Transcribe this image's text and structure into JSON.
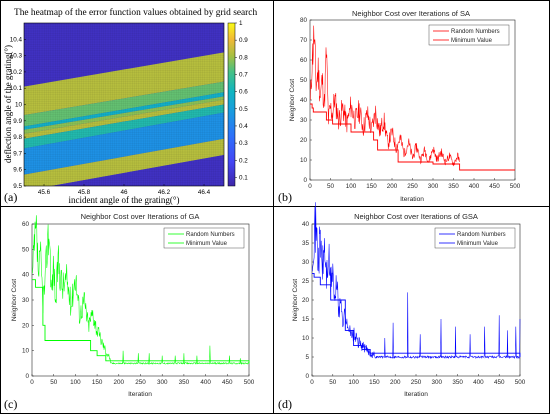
{
  "figure": {
    "panel_labels": [
      "(a)",
      "(b)",
      "(c)",
      "(d)"
    ]
  },
  "chart_data": [
    {
      "type": "heatmap",
      "title": "The heatmap of the error function values obtained by grid search",
      "xlabel": "incident angle of the grating(°)",
      "ylabel": "deflection angle of the grating(°)",
      "xlim": [
        45.5,
        46.5
      ],
      "ylim": [
        9.5,
        10.5
      ],
      "xticks": [
        45.6,
        45.8,
        46,
        46.2,
        46.4
      ],
      "xtick_labels": [
        "45.6",
        "45.8",
        "46",
        "46.2",
        "46.4"
      ],
      "yticks": [
        9.5,
        9.6,
        9.7,
        9.8,
        9.9,
        10,
        10.1,
        10.2,
        10.3,
        10.4
      ],
      "ytick_labels": [
        "9.5",
        "9.6",
        "9.7",
        "9.8",
        "9.9",
        "10",
        "10.1",
        "10.2",
        "10.3",
        "10.4"
      ],
      "colorbar": {
        "min": 0.05,
        "max": 1,
        "ticks": [
          0.1,
          0.2,
          0.3,
          0.4,
          0.5,
          0.6,
          0.7,
          0.8,
          0.9,
          1
        ],
        "tick_labels": [
          "0.1",
          "0.2",
          "0.3",
          "0.4",
          "0.5",
          "0.6",
          "0.7",
          "0.8",
          "0.9",
          "1"
        ],
        "colormap": "parula"
      },
      "bands": [
        {
          "value": 0.05,
          "y_at_45_5": 10.11,
          "y_at_46_5": 10.32
        },
        {
          "value": 0.82,
          "y_at_45_5": 9.935,
          "y_at_46_5": 10.14
        },
        {
          "value": 0.73,
          "y_at_45_5": 9.865,
          "y_at_46_5": 10.075
        },
        {
          "value": 0.55,
          "y_at_45_5": 9.845,
          "y_at_46_5": 10.05
        },
        {
          "value": 0.77,
          "y_at_45_5": 9.82,
          "y_at_46_5": 10.03
        },
        {
          "value": 0.82,
          "y_at_45_5": 9.79,
          "y_at_46_5": 10.0
        },
        {
          "value": 0.62,
          "y_at_45_5": 9.73,
          "y_at_46_5": 9.95
        },
        {
          "value": 0.42,
          "y_at_45_5": 9.57,
          "y_at_46_5": 9.79
        },
        {
          "value": 0.82,
          "y_at_45_5": 9.47,
          "y_at_46_5": 9.69
        },
        {
          "value": 0.05,
          "y_at_45_5": 9.0,
          "y_at_46_5": 9.0
        }
      ]
    },
    {
      "type": "line",
      "title": "Neighbor Cost over Iterations of SA",
      "xlabel": "Iteration",
      "ylabel": "Neighbor Cost",
      "xlim": [
        0,
        500
      ],
      "ylim": [
        0,
        80
      ],
      "xticks": [
        0,
        50,
        100,
        150,
        200,
        250,
        300,
        350,
        400,
        450,
        500
      ],
      "yticks": [
        0,
        10,
        20,
        30,
        40,
        50,
        60,
        70,
        80
      ],
      "legend_position": "top-right",
      "color": "#ff0000",
      "series": [
        {
          "name": "Random Numbers",
          "style": "random",
          "x": [
            1,
            5,
            10,
            15,
            20,
            25,
            30,
            35,
            40,
            45,
            50,
            55,
            60,
            70,
            80,
            90,
            100,
            110,
            120,
            130,
            140,
            150,
            160,
            170,
            180,
            190,
            200,
            210,
            220,
            230,
            240,
            250,
            260,
            270,
            280,
            290,
            300,
            310,
            320,
            330,
            340,
            350,
            360,
            365
          ],
          "y": [
            38,
            60,
            72,
            48,
            55,
            42,
            50,
            38,
            64,
            30,
            36,
            33,
            41,
            30,
            36,
            28,
            37,
            30,
            35,
            26,
            33,
            25,
            34,
            24,
            30,
            18,
            24,
            16,
            21,
            13,
            19,
            11,
            17,
            10,
            15,
            9,
            16,
            10,
            14,
            9,
            12,
            8,
            12,
            9
          ]
        },
        {
          "name": "Minimum Value",
          "style": "step",
          "x": [
            0,
            5,
            8,
            40,
            55,
            100,
            155,
            165,
            215,
            300,
            365,
            500
          ],
          "y": [
            38,
            36,
            34,
            30,
            28,
            24,
            20,
            15,
            9,
            8,
            5,
            5
          ]
        }
      ]
    },
    {
      "type": "line",
      "title": "Neighbor Cost over Iterations of GA",
      "xlabel": "Iteration",
      "ylabel": "Neighbor Cost",
      "xlim": [
        0,
        500
      ],
      "ylim": [
        0,
        60
      ],
      "xticks": [
        0,
        50,
        100,
        150,
        200,
        250,
        300,
        350,
        400,
        450,
        500
      ],
      "yticks": [
        0,
        10,
        20,
        30,
        40,
        50,
        60
      ],
      "legend_position": "top-right",
      "color": "#00ff00",
      "series": [
        {
          "name": "Random Numbers",
          "style": "random",
          "x": [
            1,
            5,
            10,
            15,
            20,
            25,
            30,
            35,
            40,
            45,
            50,
            55,
            60,
            70,
            80,
            90,
            100,
            110,
            120,
            130,
            140,
            150,
            160,
            170,
            180
          ],
          "y": [
            38,
            50,
            56,
            40,
            46,
            30,
            36,
            52,
            57,
            33,
            44,
            28,
            46,
            35,
            38,
            28,
            40,
            24,
            30,
            20,
            25,
            18,
            14,
            10,
            7
          ]
        },
        {
          "name": "Minimum Value",
          "style": "step",
          "x": [
            0,
            8,
            25,
            30,
            100,
            135,
            150,
            170,
            500
          ],
          "y": [
            38,
            35,
            20,
            14,
            14,
            10,
            8,
            6,
            5
          ]
        }
      ],
      "spikes": [
        [
          210,
          10
        ],
        [
          245,
          9
        ],
        [
          270,
          9
        ],
        [
          300,
          8
        ],
        [
          330,
          8
        ],
        [
          350,
          9
        ],
        [
          380,
          8
        ],
        [
          410,
          12
        ],
        [
          455,
          8
        ],
        [
          480,
          7
        ]
      ],
      "floor": 5
    },
    {
      "type": "line",
      "title": "Neighbor Cost over Iterations of GSA",
      "xlabel": "Iteration",
      "ylabel": "Neighbor Cost",
      "xlim": [
        0,
        500
      ],
      "ylim": [
        0,
        40
      ],
      "xticks": [
        0,
        50,
        100,
        150,
        200,
        250,
        300,
        350,
        400,
        450,
        500
      ],
      "yticks": [
        0,
        5,
        10,
        15,
        20,
        25,
        30,
        35,
        40
      ],
      "legend_position": "top-right",
      "color": "#0000ff",
      "series": [
        {
          "name": "Random Numbers",
          "style": "random",
          "x": [
            1,
            5,
            10,
            15,
            20,
            25,
            30,
            35,
            40,
            45,
            50,
            55,
            60,
            65,
            70,
            75,
            80,
            85,
            90,
            95,
            100,
            110,
            120,
            130,
            140,
            150
          ],
          "y": [
            33,
            38,
            39,
            30,
            36,
            28,
            34,
            26,
            31,
            24,
            29,
            18,
            26,
            16,
            20,
            14,
            17,
            12,
            14,
            10,
            11,
            9,
            8,
            7,
            6,
            5.5
          ]
        },
        {
          "name": "Minimum Value",
          "style": "step",
          "x": [
            0,
            5,
            20,
            45,
            80,
            100,
            120,
            140,
            500
          ],
          "y": [
            27,
            26,
            24,
            20,
            12,
            8,
            7,
            6,
            5
          ]
        }
      ],
      "spikes": [
        [
          140,
          12
        ],
        [
          175,
          10
        ],
        [
          195,
          14
        ],
        [
          230,
          22
        ],
        [
          260,
          11
        ],
        [
          310,
          15
        ],
        [
          345,
          13
        ],
        [
          380,
          11
        ],
        [
          415,
          13
        ],
        [
          450,
          16
        ],
        [
          470,
          12
        ],
        [
          490,
          13
        ],
        [
          500,
          15
        ]
      ],
      "floor": 5
    }
  ]
}
